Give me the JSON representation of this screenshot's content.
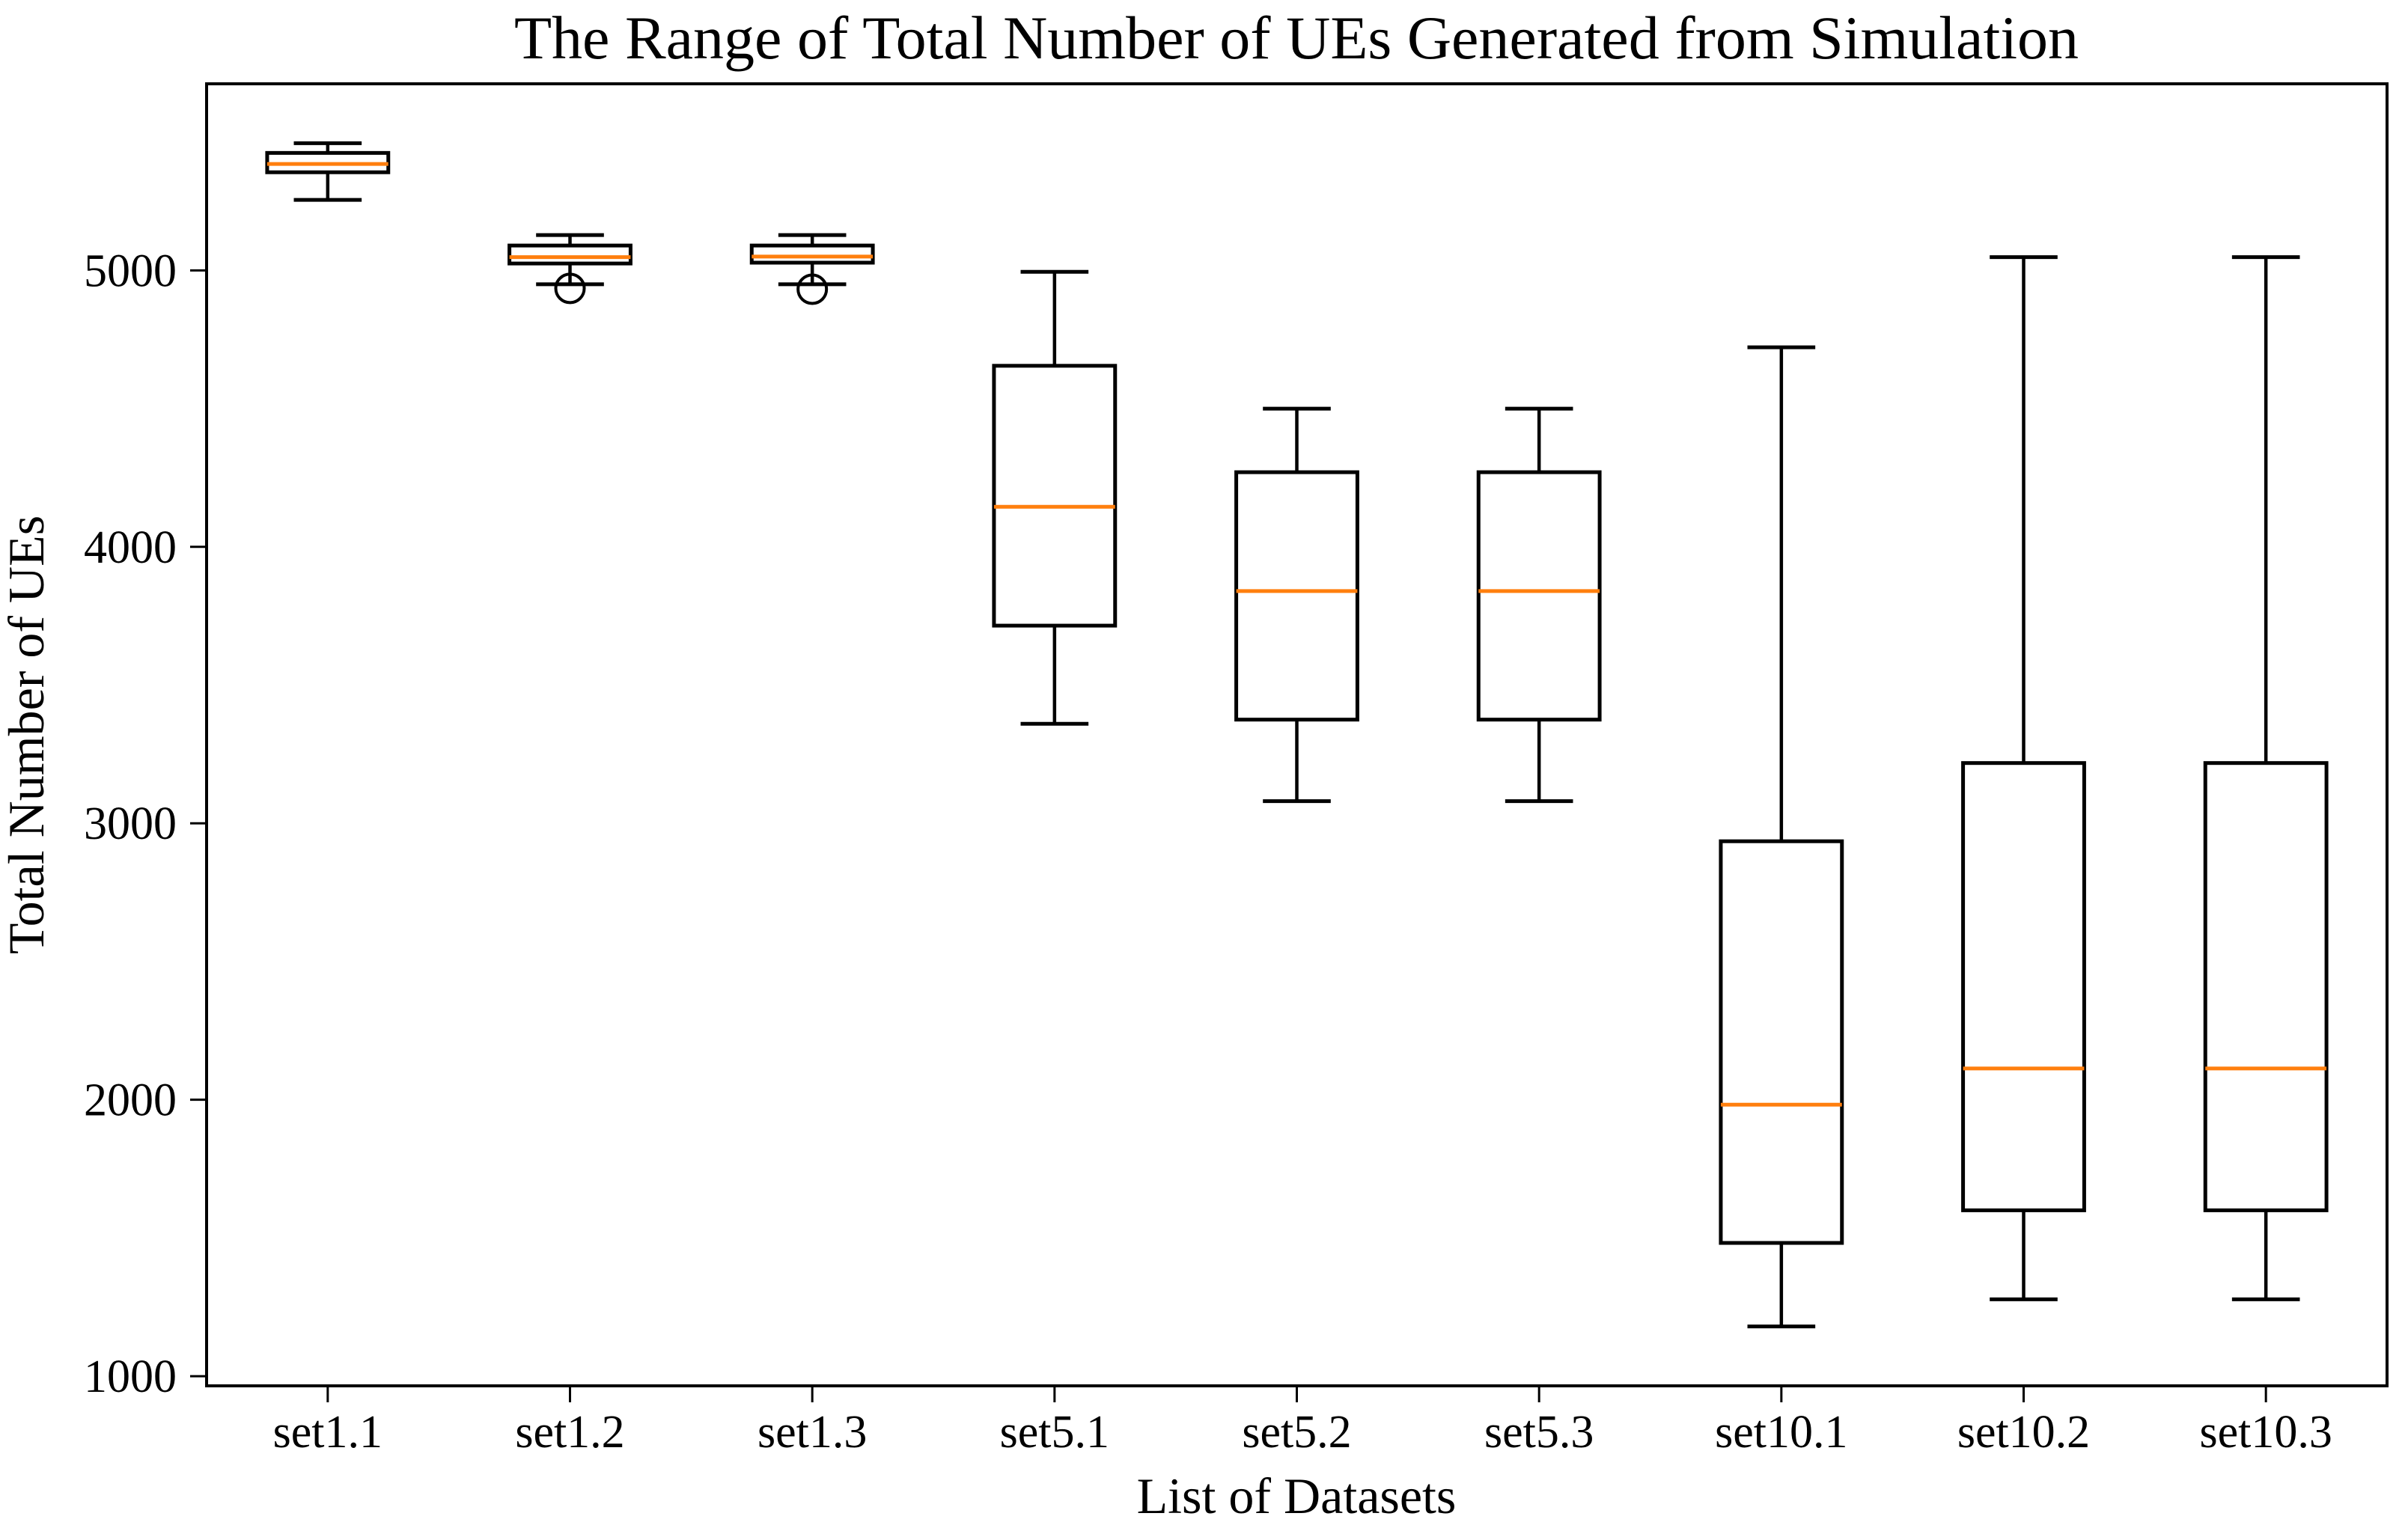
{
  "title": "The Range of Total Number of UEs Generated from Simulation",
  "chart_data": {
    "type": "box",
    "title": "The Range of Total Number of UEs Generated from Simulation",
    "xlabel": "List of Datasets",
    "ylabel": "Total Number of UEs",
    "categories": [
      "set1.1",
      "set1.2",
      "set1.3",
      "set5.1",
      "set5.2",
      "set5.3",
      "set10.1",
      "set10.2",
      "set10.3"
    ],
    "yticks": [
      1000,
      2000,
      3000,
      4000,
      5000
    ],
    "ylim": [
      965,
      5675
    ],
    "xlim": [
      0.5,
      9.5
    ],
    "grid": false,
    "legend": "none",
    "box_color": "#000000",
    "median_color": "#ff7f0e",
    "series": [
      {
        "label": "set1.1",
        "whislo": 5255,
        "q1": 5355,
        "med": 5385,
        "q3": 5425,
        "whishi": 5460,
        "fliers": []
      },
      {
        "label": "set1.2",
        "whislo": 4950,
        "q1": 5025,
        "med": 5048,
        "q3": 5090,
        "whishi": 5128,
        "fliers": [
          4935
        ]
      },
      {
        "label": "set1.3",
        "whislo": 4950,
        "q1": 5028,
        "med": 5050,
        "q3": 5090,
        "whishi": 5128,
        "fliers": [
          4932
        ]
      },
      {
        "label": "set5.1",
        "whislo": 3360,
        "q1": 3715,
        "med": 4145,
        "q3": 4655,
        "whishi": 4995,
        "fliers": []
      },
      {
        "label": "set5.2",
        "whislo": 3080,
        "q1": 3375,
        "med": 3840,
        "q3": 4270,
        "whishi": 4500,
        "fliers": []
      },
      {
        "label": "set5.3",
        "whislo": 3080,
        "q1": 3375,
        "med": 3840,
        "q3": 4270,
        "whishi": 4500,
        "fliers": []
      },
      {
        "label": "set10.1",
        "whislo": 1180,
        "q1": 1482,
        "med": 1982,
        "q3": 2935,
        "whishi": 4722,
        "fliers": []
      },
      {
        "label": "set10.2",
        "whislo": 1278,
        "q1": 1600,
        "med": 2113,
        "q3": 3218,
        "whishi": 5048,
        "fliers": []
      },
      {
        "label": "set10.3",
        "whislo": 1278,
        "q1": 1600,
        "med": 2113,
        "q3": 3218,
        "whishi": 5048,
        "fliers": []
      }
    ]
  }
}
